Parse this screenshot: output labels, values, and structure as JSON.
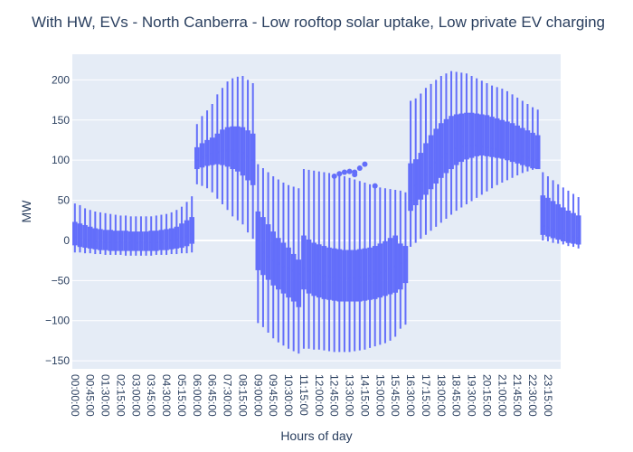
{
  "chart_data": {
    "type": "box",
    "title": "With HW, EVs - North Canberra - Low rooftop solar uptake, Low private EV charging",
    "xlabel": "Hours of day",
    "ylabel": "MW",
    "ylim": [
      -160,
      232
    ],
    "yticks": [
      -150,
      -100,
      -50,
      0,
      50,
      100,
      150,
      200
    ],
    "xtick_labels": [
      "00:00:00",
      "00:45:00",
      "01:30:00",
      "02:15:00",
      "03:00:00",
      "03:45:00",
      "04:30:00",
      "05:15:00",
      "06:00:00",
      "06:45:00",
      "07:30:00",
      "08:15:00",
      "09:00:00",
      "09:45:00",
      "10:30:00",
      "11:15:00",
      "12:00:00",
      "12:45:00",
      "13:30:00",
      "14:15:00",
      "15:00:00",
      "15:45:00",
      "16:30:00",
      "17:15:00",
      "18:00:00",
      "18:45:00",
      "19:30:00",
      "20:15:00",
      "21:00:00",
      "21:45:00",
      "22:30:00",
      "23:15:00"
    ],
    "categories": [
      "00:00:00",
      "00:15:00",
      "00:30:00",
      "00:45:00",
      "01:00:00",
      "01:15:00",
      "01:30:00",
      "01:45:00",
      "02:00:00",
      "02:15:00",
      "02:30:00",
      "02:45:00",
      "03:00:00",
      "03:15:00",
      "03:30:00",
      "03:45:00",
      "04:00:00",
      "04:15:00",
      "04:30:00",
      "04:45:00",
      "05:00:00",
      "05:15:00",
      "05:30:00",
      "05:45:00",
      "06:00:00",
      "06:15:00",
      "06:30:00",
      "06:45:00",
      "07:00:00",
      "07:15:00",
      "07:30:00",
      "07:45:00",
      "08:00:00",
      "08:15:00",
      "08:30:00",
      "08:45:00",
      "09:00:00",
      "09:15:00",
      "09:30:00",
      "09:45:00",
      "10:00:00",
      "10:15:00",
      "10:30:00",
      "10:45:00",
      "11:00:00",
      "11:15:00",
      "11:30:00",
      "11:45:00",
      "12:00:00",
      "12:15:00",
      "12:30:00",
      "12:45:00",
      "13:00:00",
      "13:15:00",
      "13:30:00",
      "13:45:00",
      "14:00:00",
      "14:15:00",
      "14:30:00",
      "14:45:00",
      "15:00:00",
      "15:15:00",
      "15:30:00",
      "15:45:00",
      "16:00:00",
      "16:15:00",
      "16:30:00",
      "16:45:00",
      "17:00:00",
      "17:15:00",
      "17:30:00",
      "17:45:00",
      "18:00:00",
      "18:15:00",
      "18:30:00",
      "18:45:00",
      "19:00:00",
      "19:15:00",
      "19:30:00",
      "19:45:00",
      "20:00:00",
      "20:15:00",
      "20:30:00",
      "20:45:00",
      "21:00:00",
      "21:15:00",
      "21:30:00",
      "21:45:00",
      "22:00:00",
      "22:15:00",
      "22:30:00",
      "22:45:00",
      "23:00:00",
      "23:15:00",
      "23:30:00",
      "23:45:00"
    ],
    "boxes": [
      {
        "min": -15,
        "q1": -5,
        "median": 4,
        "q3": 22,
        "max": 46
      },
      {
        "min": -15,
        "q1": -7,
        "median": 2,
        "q3": 20,
        "max": 44
      },
      {
        "min": -16,
        "q1": -8,
        "median": 1,
        "q3": 18,
        "max": 40
      },
      {
        "min": -16,
        "q1": -9,
        "median": 0,
        "q3": 16,
        "max": 38
      },
      {
        "min": -17,
        "q1": -10,
        "median": -1,
        "q3": 14,
        "max": 36
      },
      {
        "min": -17,
        "q1": -11,
        "median": -1,
        "q3": 13,
        "max": 35
      },
      {
        "min": -18,
        "q1": -11,
        "median": -2,
        "q3": 12,
        "max": 34
      },
      {
        "min": -18,
        "q1": -12,
        "median": -2,
        "q3": 12,
        "max": 33
      },
      {
        "min": -18,
        "q1": -12,
        "median": -2,
        "q3": 11,
        "max": 32
      },
      {
        "min": -18,
        "q1": -12,
        "median": -3,
        "q3": 11,
        "max": 31
      },
      {
        "min": -19,
        "q1": -12,
        "median": -3,
        "q3": 11,
        "max": 31
      },
      {
        "min": -19,
        "q1": -12,
        "median": -3,
        "q3": 10,
        "max": 30
      },
      {
        "min": -19,
        "q1": -12,
        "median": -3,
        "q3": 10,
        "max": 30
      },
      {
        "min": -19,
        "q1": -12,
        "median": -3,
        "q3": 10,
        "max": 30
      },
      {
        "min": -19,
        "q1": -12,
        "median": -3,
        "q3": 10,
        "max": 30
      },
      {
        "min": -19,
        "q1": -12,
        "median": -2,
        "q3": 11,
        "max": 30
      },
      {
        "min": -18,
        "q1": -12,
        "median": -2,
        "q3": 11,
        "max": 31
      },
      {
        "min": -18,
        "q1": -11,
        "median": -2,
        "q3": 12,
        "max": 32
      },
      {
        "min": -18,
        "q1": -11,
        "median": -1,
        "q3": 13,
        "max": 33
      },
      {
        "min": -17,
        "q1": -10,
        "median": 0,
        "q3": 14,
        "max": 35
      },
      {
        "min": -17,
        "q1": -9,
        "median": 1,
        "q3": 16,
        "max": 38
      },
      {
        "min": -16,
        "q1": -8,
        "median": 3,
        "q3": 20,
        "max": 42
      },
      {
        "min": -16,
        "q1": -6,
        "median": 5,
        "q3": 24,
        "max": 48
      },
      {
        "min": -15,
        "q1": -3,
        "median": 8,
        "q3": 28,
        "max": 55
      },
      {
        "min": 70,
        "q1": 90,
        "median": 100,
        "q3": 115,
        "max": 145
      },
      {
        "min": 68,
        "q1": 92,
        "median": 103,
        "q3": 120,
        "max": 155
      },
      {
        "min": 65,
        "q1": 94,
        "median": 106,
        "q3": 124,
        "max": 162
      },
      {
        "min": 60,
        "q1": 95,
        "median": 108,
        "q3": 127,
        "max": 170
      },
      {
        "min": 52,
        "q1": 96,
        "median": 110,
        "q3": 132,
        "max": 182
      },
      {
        "min": 45,
        "q1": 95,
        "median": 112,
        "q3": 137,
        "max": 190
      },
      {
        "min": 38,
        "q1": 93,
        "median": 112,
        "q3": 140,
        "max": 198
      },
      {
        "min": 30,
        "q1": 90,
        "median": 112,
        "q3": 141,
        "max": 202
      },
      {
        "min": 25,
        "q1": 87,
        "median": 111,
        "q3": 141,
        "max": 204
      },
      {
        "min": 20,
        "q1": 82,
        "median": 109,
        "q3": 140,
        "max": 205
      },
      {
        "min": 10,
        "q1": 76,
        "median": 105,
        "q3": 136,
        "max": 200
      },
      {
        "min": 2,
        "q1": 70,
        "median": 100,
        "q3": 132,
        "max": 196
      },
      {
        "min": -103,
        "q1": -36,
        "median": -10,
        "q3": 35,
        "max": 95
      },
      {
        "min": -108,
        "q1": -42,
        "median": -15,
        "q3": 28,
        "max": 90
      },
      {
        "min": -115,
        "q1": -48,
        "median": -20,
        "q3": 19,
        "max": 85
      },
      {
        "min": -122,
        "q1": -55,
        "median": -25,
        "q3": 10,
        "max": 80
      },
      {
        "min": -127,
        "q1": -60,
        "median": -29,
        "q3": 2,
        "max": 76
      },
      {
        "min": -131,
        "q1": -65,
        "median": -32,
        "q3": -4,
        "max": 72
      },
      {
        "min": -135,
        "q1": -70,
        "median": -35,
        "q3": -10,
        "max": 69
      },
      {
        "min": -138,
        "q1": -75,
        "median": -38,
        "q3": -18,
        "max": 67
      },
      {
        "min": -141,
        "q1": -82,
        "median": -42,
        "q3": -25,
        "max": 65
      },
      {
        "min": -135,
        "q1": -60,
        "median": -35,
        "q3": 5,
        "max": 89
      },
      {
        "min": -135,
        "q1": -65,
        "median": -38,
        "q3": 0,
        "max": 88
      },
      {
        "min": -136,
        "q1": -68,
        "median": -40,
        "q3": -4,
        "max": 87
      },
      {
        "min": -136,
        "q1": -70,
        "median": -42,
        "q3": -6,
        "max": 86
      },
      {
        "min": -137,
        "q1": -72,
        "median": -44,
        "q3": -8,
        "max": 85
      },
      {
        "min": -138,
        "q1": -73,
        "median": -45,
        "q3": -10,
        "max": 84
      },
      {
        "min": -139,
        "q1": -74,
        "median": -46,
        "q3": -11,
        "max": 83
      },
      {
        "min": -139,
        "q1": -75,
        "median": -47,
        "q3": -12,
        "max": 82
      },
      {
        "min": -139,
        "q1": -75,
        "median": -47,
        "q3": -13,
        "max": 80
      },
      {
        "min": -139,
        "q1": -75,
        "median": -47,
        "q3": -13,
        "max": 78
      },
      {
        "min": -138,
        "q1": -75,
        "median": -47,
        "q3": -13,
        "max": 76
      },
      {
        "min": -137,
        "q1": -75,
        "median": -46,
        "q3": -12,
        "max": 74
      },
      {
        "min": -136,
        "q1": -74,
        "median": -45,
        "q3": -11,
        "max": 72
      },
      {
        "min": -134,
        "q1": -73,
        "median": -44,
        "q3": -10,
        "max": 70
      },
      {
        "min": -132,
        "q1": -72,
        "median": -42,
        "q3": -8,
        "max": 68
      },
      {
        "min": -130,
        "q1": -70,
        "median": -40,
        "q3": -5,
        "max": 66
      },
      {
        "min": -128,
        "q1": -68,
        "median": -38,
        "q3": -2,
        "max": 65
      },
      {
        "min": -125,
        "q1": -66,
        "median": -35,
        "q3": 2,
        "max": 64
      },
      {
        "min": -120,
        "q1": -64,
        "median": -32,
        "q3": 5,
        "max": 63
      },
      {
        "min": -110,
        "q1": -60,
        "median": -28,
        "q3": -5,
        "max": 62
      },
      {
        "min": -105,
        "q1": -52,
        "median": -25,
        "q3": -8,
        "max": 60
      },
      {
        "min": -8,
        "q1": 38,
        "median": 60,
        "q3": 95,
        "max": 174
      },
      {
        "min": -3,
        "q1": 45,
        "median": 68,
        "q3": 100,
        "max": 177
      },
      {
        "min": 2,
        "q1": 52,
        "median": 75,
        "q3": 108,
        "max": 183
      },
      {
        "min": 7,
        "q1": 58,
        "median": 82,
        "q3": 120,
        "max": 190
      },
      {
        "min": 12,
        "q1": 65,
        "median": 90,
        "q3": 130,
        "max": 195
      },
      {
        "min": 17,
        "q1": 72,
        "median": 97,
        "q3": 138,
        "max": 200
      },
      {
        "min": 22,
        "q1": 79,
        "median": 103,
        "q3": 145,
        "max": 205
      },
      {
        "min": 27,
        "q1": 85,
        "median": 108,
        "q3": 150,
        "max": 208
      },
      {
        "min": 32,
        "q1": 90,
        "median": 112,
        "q3": 154,
        "max": 211
      },
      {
        "min": 37,
        "q1": 95,
        "median": 115,
        "q3": 156,
        "max": 210
      },
      {
        "min": 41,
        "q1": 99,
        "median": 117,
        "q3": 157,
        "max": 209
      },
      {
        "min": 45,
        "q1": 102,
        "median": 118,
        "q3": 158,
        "max": 208
      },
      {
        "min": 49,
        "q1": 104,
        "median": 118,
        "q3": 158,
        "max": 205
      },
      {
        "min": 53,
        "q1": 106,
        "median": 118,
        "q3": 157,
        "max": 202
      },
      {
        "min": 57,
        "q1": 107,
        "median": 117,
        "q3": 156,
        "max": 199
      },
      {
        "min": 61,
        "q1": 106,
        "median": 116,
        "q3": 155,
        "max": 196
      },
      {
        "min": 65,
        "q1": 105,
        "median": 115,
        "q3": 153,
        "max": 193
      },
      {
        "min": 69,
        "q1": 104,
        "median": 114,
        "q3": 151,
        "max": 191
      },
      {
        "min": 72,
        "q1": 103,
        "median": 113,
        "q3": 149,
        "max": 189
      },
      {
        "min": 75,
        "q1": 101,
        "median": 111,
        "q3": 147,
        "max": 186
      },
      {
        "min": 78,
        "q1": 99,
        "median": 109,
        "q3": 145,
        "max": 182
      },
      {
        "min": 81,
        "q1": 97,
        "median": 107,
        "q3": 142,
        "max": 178
      },
      {
        "min": 84,
        "q1": 95,
        "median": 105,
        "q3": 139,
        "max": 174
      },
      {
        "min": 86,
        "q1": 93,
        "median": 103,
        "q3": 136,
        "max": 170
      },
      {
        "min": 88,
        "q1": 91,
        "median": 101,
        "q3": 133,
        "max": 166
      },
      {
        "min": 90,
        "q1": 90,
        "median": 100,
        "q3": 130,
        "max": 163
      },
      {
        "min": 0,
        "q1": 8,
        "median": 18,
        "q3": 55,
        "max": 85
      },
      {
        "min": -1,
        "q1": 6,
        "median": 16,
        "q3": 52,
        "max": 80
      },
      {
        "min": -3,
        "q1": 4,
        "median": 14,
        "q3": 48,
        "max": 75
      },
      {
        "min": -4,
        "q1": 2,
        "median": 11,
        "q3": 44,
        "max": 70
      },
      {
        "min": -5,
        "q1": 0,
        "median": 9,
        "q3": 40,
        "max": 66
      },
      {
        "min": -7,
        "q1": -2,
        "median": 7,
        "q3": 36,
        "max": 62
      },
      {
        "min": -8,
        "q1": -3,
        "median": 5,
        "q3": 33,
        "max": 58
      },
      {
        "min": -10,
        "q1": -4,
        "median": 3,
        "q3": 30,
        "max": 54
      }
    ],
    "outliers": [
      {
        "category": "12:45:00",
        "value": 80
      },
      {
        "category": "13:00:00",
        "value": 83
      },
      {
        "category": "13:15:00",
        "value": 85
      },
      {
        "category": "13:30:00",
        "value": 86
      },
      {
        "category": "13:45:00",
        "value": 85
      },
      {
        "category": "13:45:00",
        "value": 82
      },
      {
        "category": "14:00:00",
        "value": 90
      },
      {
        "category": "14:15:00",
        "value": 95
      },
      {
        "category": "14:45:00",
        "value": 68
      }
    ],
    "colors": {
      "box": "#636efa",
      "box_fill": "rgba(99,110,250,0.5)",
      "plot_bg": "#e5ecf6",
      "grid": "#ffffff",
      "text": "#2a3f5f"
    }
  }
}
